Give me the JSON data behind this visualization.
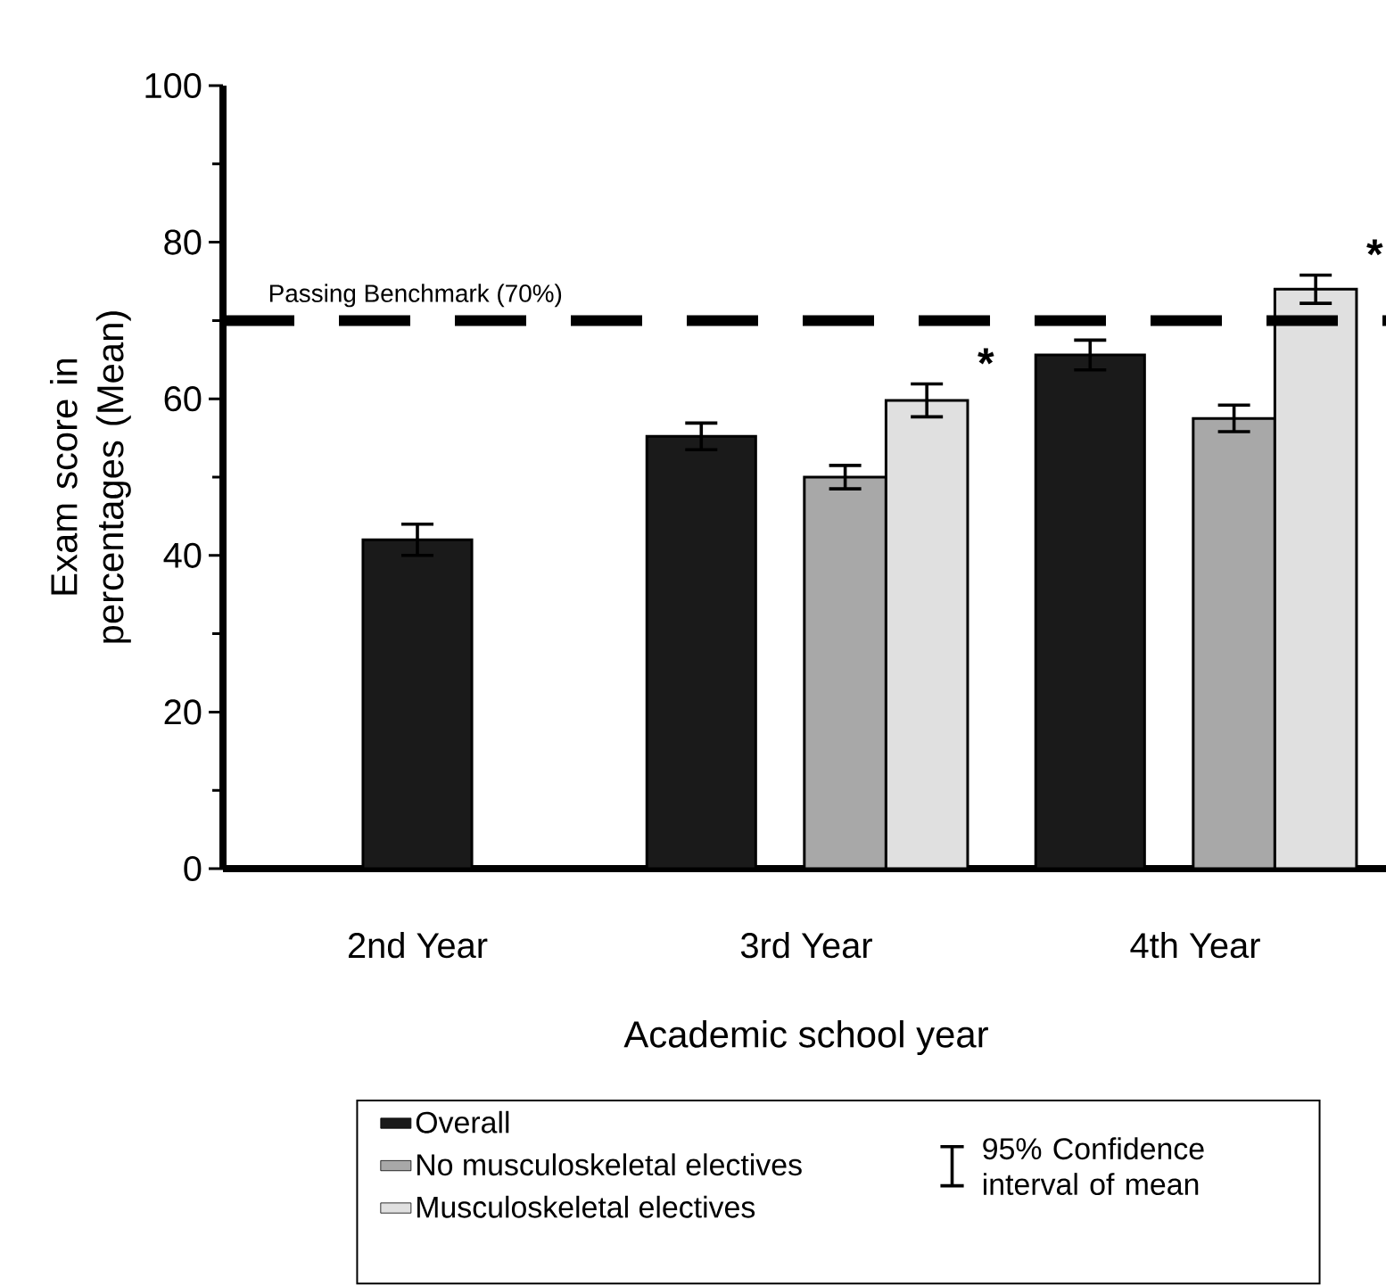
{
  "chart_data": {
    "type": "bar",
    "xlabel": "Academic school year",
    "ylabel": "Exam score in percentages (Mean)",
    "categories": [
      "2nd Year",
      "3rd Year",
      "4th Year"
    ],
    "series": [
      {
        "name": "Overall",
        "color": "#1a1a1a",
        "values": [
          42,
          55.2,
          65.6
        ],
        "errors": [
          2,
          1.7,
          1.9
        ]
      },
      {
        "name": "No musculoskeletal electives",
        "color": "#a8a8a8",
        "values": [
          null,
          50,
          57.5
        ],
        "errors": [
          null,
          1.5,
          1.7
        ]
      },
      {
        "name": "Musculoskeletal electives",
        "color": "#e0e0e0",
        "values": [
          null,
          59.8,
          74
        ],
        "errors": [
          null,
          2.1,
          1.8
        ]
      }
    ],
    "ylim": [
      0,
      100
    ],
    "yticks": [
      0,
      20,
      40,
      60,
      80,
      100
    ],
    "ref_lines": [
      {
        "axis": "y",
        "value": 70,
        "label": "Passing Benchmark (70%)",
        "line_style": "dashed",
        "color": "#000000"
      }
    ],
    "annotations": [
      "95% Confidence interval of mean",
      "*",
      "*"
    ],
    "legend": "bottom"
  }
}
